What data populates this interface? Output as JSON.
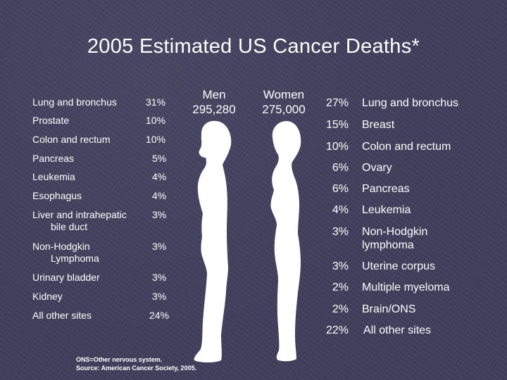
{
  "title": "2005 Estimated US Cancer Deaths*",
  "men": {
    "label": "Men",
    "count": "295,280"
  },
  "women": {
    "label": "Women",
    "count": "275,000"
  },
  "men_sites": [
    {
      "site": "Lung and bronchus",
      "pct": "31%"
    },
    {
      "site": "Prostate",
      "pct": "10%"
    },
    {
      "site": "Colon and rectum",
      "pct": "10%"
    },
    {
      "site": "Pancreas",
      "pct": "5%"
    },
    {
      "site": "Leukemia",
      "pct": "4%"
    },
    {
      "site": "Esophagus",
      "pct": "4%"
    },
    {
      "site": "Liver and intrahepatic",
      "site_cont": "bile duct",
      "pct": "3%"
    },
    {
      "site": "Non-Hodgkin",
      "site_cont": "Lymphoma",
      "pct": "3%"
    },
    {
      "site": "Urinary bladder",
      "pct": "3%"
    },
    {
      "site": "Kidney",
      "pct": "3%"
    },
    {
      "site": "All other sites",
      "pct": "24%"
    }
  ],
  "women_sites": [
    {
      "pct": "27%",
      "site": "Lung and bronchus"
    },
    {
      "pct": "15%",
      "site": "Breast"
    },
    {
      "pct": "10%",
      "site": "Colon and rectum"
    },
    {
      "pct": "6%",
      "site": "Ovary"
    },
    {
      "pct": "6%",
      "site": "Pancreas"
    },
    {
      "pct": "4%",
      "site": "Leukemia"
    },
    {
      "pct": "3%",
      "site": "Non-Hodgkin",
      "site_cont": "lymphoma"
    },
    {
      "pct": "3%",
      "site": "Uterine corpus"
    },
    {
      "pct": "2%",
      "site": "Multiple myeloma"
    },
    {
      "pct": "2%",
      "site": "Brain/ONS"
    },
    {
      "pct": "22%",
      "site": "All other sites"
    }
  ],
  "footnote": {
    "line1": "ONS=Other nervous system.",
    "line2": "Source: American Cancer Society, 2005."
  },
  "colors": {
    "background": "#3e3c5a",
    "text": "#ffffff",
    "silhouette": "#ffffff"
  }
}
